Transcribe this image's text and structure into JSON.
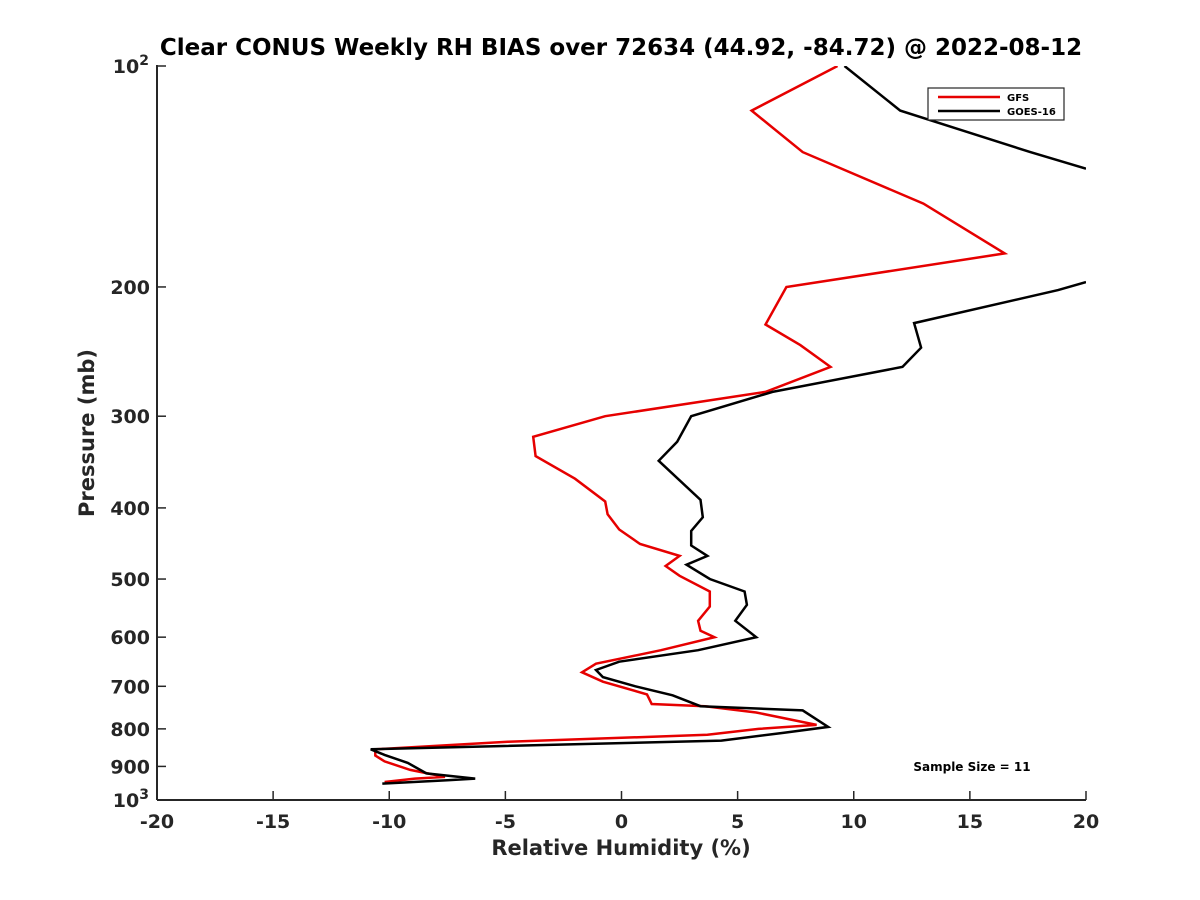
{
  "chart_data": {
    "type": "line",
    "title": "Clear CONUS Weekly RH BIAS over 72634 (44.92, -84.72) @ 2022-08-12",
    "xlabel": "Relative Humidity (%)",
    "ylabel": "Pressure (mb)",
    "xlim": [
      -20,
      20
    ],
    "ylim": [
      100,
      1000
    ],
    "yscale": "log",
    "y_reversed": true,
    "x_ticks": [
      {
        "value": -20,
        "label": "-20"
      },
      {
        "value": -15,
        "label": "-15"
      },
      {
        "value": -10,
        "label": "-10"
      },
      {
        "value": -5,
        "label": "-5"
      },
      {
        "value": 0,
        "label": "0"
      },
      {
        "value": 5,
        "label": "5"
      },
      {
        "value": 10,
        "label": "10"
      },
      {
        "value": 15,
        "label": "15"
      },
      {
        "value": 20,
        "label": "20"
      }
    ],
    "y_ticks": [
      {
        "value": 100,
        "base": "10",
        "exp": "2"
      },
      {
        "value": 200,
        "label": "200"
      },
      {
        "value": 300,
        "label": "300"
      },
      {
        "value": 400,
        "label": "400"
      },
      {
        "value": 500,
        "label": "500"
      },
      {
        "value": 600,
        "label": "600"
      },
      {
        "value": 700,
        "label": "700"
      },
      {
        "value": 800,
        "label": "800"
      },
      {
        "value": 900,
        "label": "900"
      },
      {
        "value": 1000,
        "base": "10",
        "exp": "3"
      }
    ],
    "legend_position": "top-right",
    "series": [
      {
        "name": "GFS",
        "color": "#e60000",
        "points": [
          [
            9.3,
            100
          ],
          [
            5.6,
            115
          ],
          [
            7.8,
            131
          ],
          [
            13.0,
            154
          ],
          [
            16.5,
            180
          ],
          [
            7.1,
            200
          ],
          [
            6.2,
            225
          ],
          [
            7.7,
            240
          ],
          [
            9.0,
            257
          ],
          [
            6.2,
            278
          ],
          [
            -0.7,
            300
          ],
          [
            -3.8,
            320
          ],
          [
            -3.7,
            340
          ],
          [
            -2.0,
            365
          ],
          [
            -0.7,
            392
          ],
          [
            -0.6,
            408
          ],
          [
            -0.1,
            428
          ],
          [
            0.8,
            448
          ],
          [
            2.5,
            465
          ],
          [
            1.9,
            480
          ],
          [
            2.5,
            495
          ],
          [
            3.8,
            520
          ],
          [
            3.8,
            545
          ],
          [
            3.3,
            570
          ],
          [
            3.4,
            588
          ],
          [
            4.0,
            600
          ],
          [
            1.7,
            625
          ],
          [
            -1.1,
            652
          ],
          [
            -1.7,
            670
          ],
          [
            -0.8,
            690
          ],
          [
            1.1,
            718
          ],
          [
            1.3,
            740
          ],
          [
            3.6,
            745
          ],
          [
            5.8,
            760
          ],
          [
            8.4,
            790
          ],
          [
            5.9,
            800
          ],
          [
            3.7,
            815
          ],
          [
            -4.9,
            833
          ],
          [
            -10.6,
            853
          ],
          [
            -10.6,
            870
          ],
          [
            -10.2,
            886
          ],
          [
            -9.1,
            910
          ],
          [
            -7.6,
            930
          ],
          [
            -8.9,
            935
          ],
          [
            -10.2,
            945
          ]
        ]
      },
      {
        "name": "GOES-16",
        "color": "#000000",
        "points": [
          [
            9.6,
            100
          ],
          [
            12.0,
            115
          ],
          [
            17.6,
            131
          ],
          [
            20.0,
            138
          ],
          [
            null,
            null
          ],
          [
            20.0,
            197
          ],
          [
            18.8,
            202
          ],
          [
            12.6,
            224
          ],
          [
            12.9,
            242
          ],
          [
            12.1,
            257
          ],
          [
            6.5,
            278
          ],
          [
            3.0,
            300
          ],
          [
            2.4,
            325
          ],
          [
            1.6,
            345
          ],
          [
            3.4,
            390
          ],
          [
            3.5,
            412
          ],
          [
            3.0,
            430
          ],
          [
            3.0,
            450
          ],
          [
            3.7,
            465
          ],
          [
            2.8,
            478
          ],
          [
            3.8,
            500
          ],
          [
            5.3,
            520
          ],
          [
            5.4,
            542
          ],
          [
            4.9,
            570
          ],
          [
            5.8,
            600
          ],
          [
            3.3,
            625
          ],
          [
            -0.1,
            648
          ],
          [
            -1.1,
            665
          ],
          [
            -0.8,
            680
          ],
          [
            0.6,
            700
          ],
          [
            2.2,
            720
          ],
          [
            3.4,
            745
          ],
          [
            7.8,
            755
          ],
          [
            8.9,
            795
          ],
          [
            7.0,
            810
          ],
          [
            4.3,
            830
          ],
          [
            -10.8,
            853
          ],
          [
            -10.2,
            868
          ],
          [
            -9.2,
            890
          ],
          [
            -8.4,
            920
          ],
          [
            -6.3,
            935
          ],
          [
            -7.5,
            940
          ],
          [
            -10.3,
            950
          ]
        ]
      }
    ],
    "annotation": "Sample Size = 11"
  }
}
